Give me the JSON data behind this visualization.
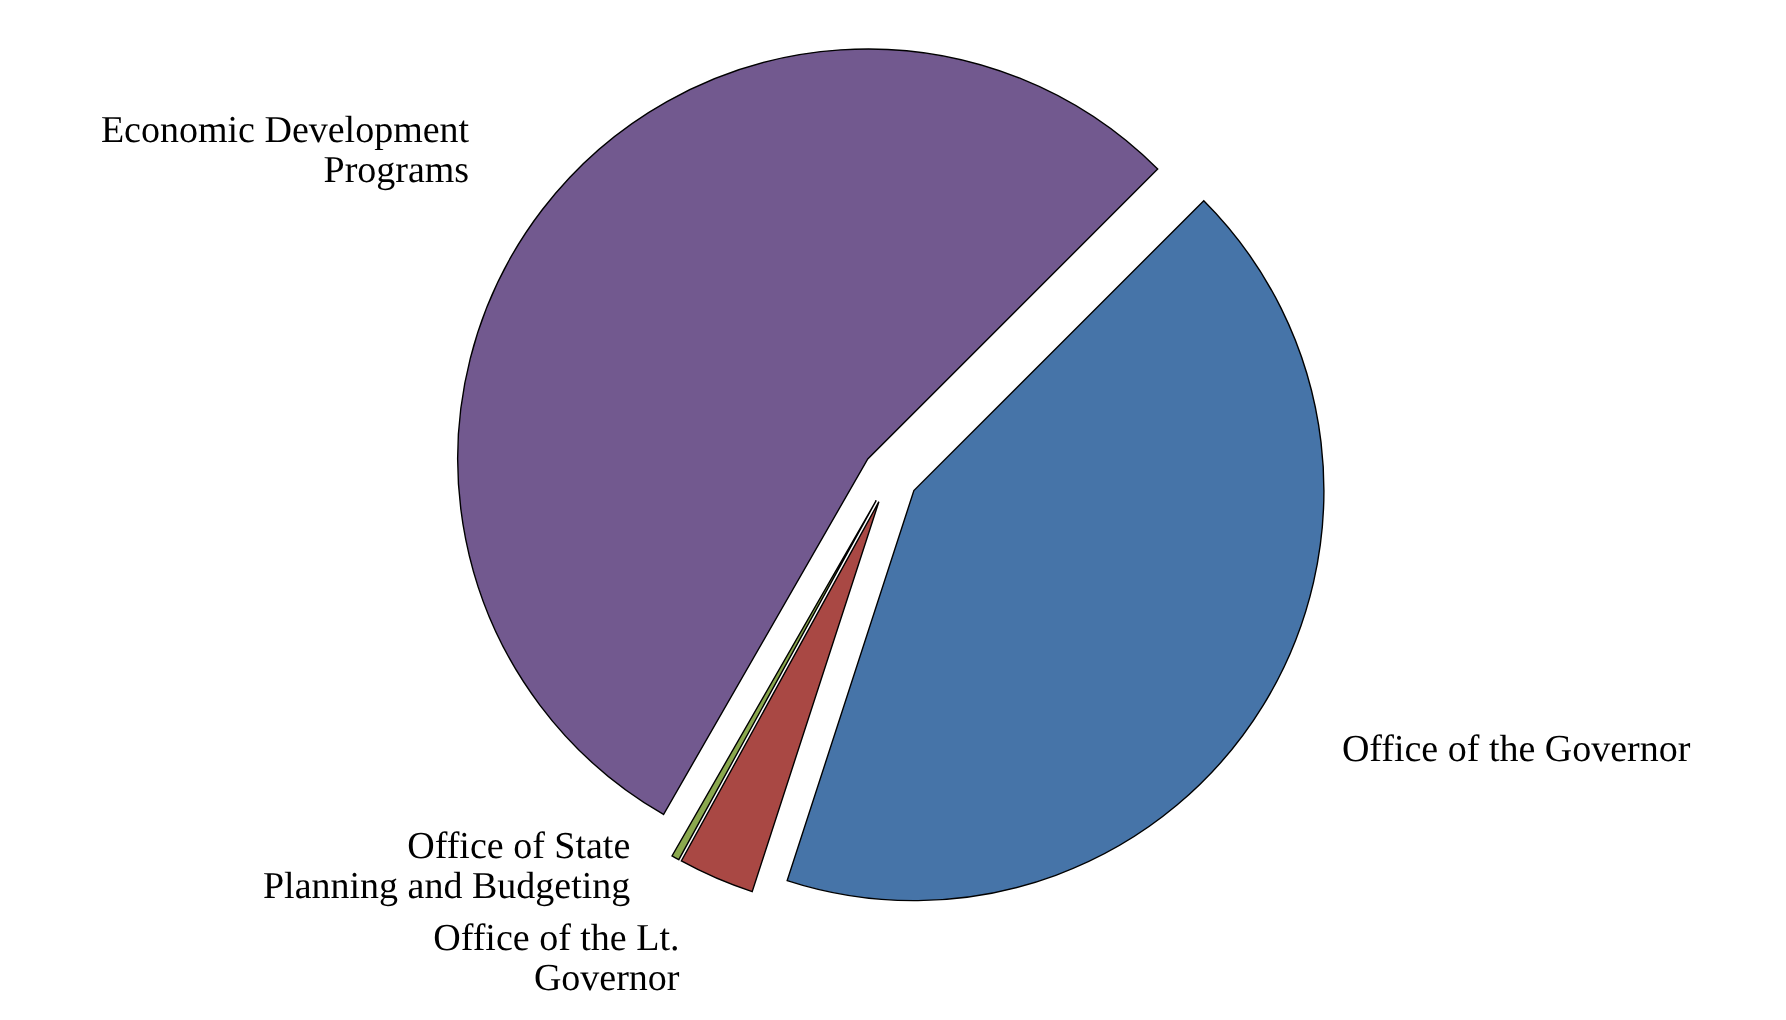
{
  "chart_data": {
    "type": "pie",
    "categories": [
      "Office of the Governor",
      "Office of the Lt. Governor",
      "Office of State Planning and Budgeting",
      "Economic Development Programs"
    ],
    "values": [
      42.5,
      3,
      0.3,
      54.2
    ],
    "colors": [
      "#4674a8",
      "#a94844",
      "#8aa84e",
      "#72598f"
    ]
  }
}
